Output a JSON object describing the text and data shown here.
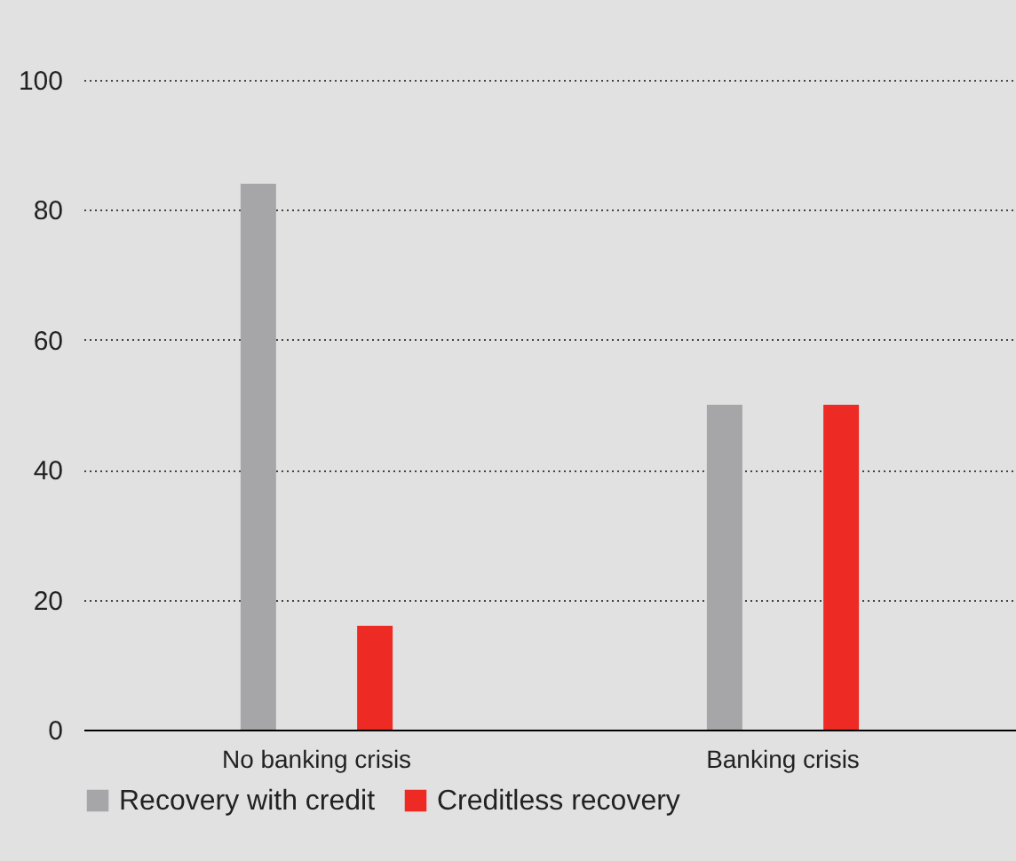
{
  "chart_data": {
    "type": "bar",
    "categories": [
      "No banking crisis",
      "Banking crisis"
    ],
    "series": [
      {
        "name": "Recovery with credit",
        "color": "#a6a6a8",
        "values": [
          84,
          50
        ]
      },
      {
        "name": "Creditless recovery",
        "color": "#ee2a24",
        "values": [
          16,
          50
        ]
      }
    ],
    "ylim": [
      0,
      100
    ],
    "yticks": [
      0,
      20,
      40,
      60,
      80,
      100
    ],
    "grid": "y",
    "legend": "bottom"
  }
}
